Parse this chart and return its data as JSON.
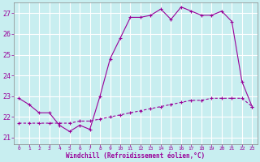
{
  "xlabel": "Windchill (Refroidissement éolien,°C)",
  "bg_color": "#c8eef0",
  "line_color": "#990099",
  "grid_color": "#ffffff",
  "spine_color": "#888888",
  "ylim": [
    20.7,
    27.5
  ],
  "xlim": [
    -0.5,
    23.5
  ],
  "yticks": [
    21,
    22,
    23,
    24,
    25,
    26,
    27
  ],
  "xticks": [
    0,
    1,
    2,
    3,
    4,
    5,
    6,
    7,
    8,
    9,
    10,
    11,
    12,
    13,
    14,
    15,
    16,
    17,
    18,
    19,
    20,
    21,
    22,
    23
  ],
  "series1_x": [
    0,
    1,
    2,
    3,
    4,
    5,
    6,
    7,
    8,
    9,
    10,
    11,
    12,
    13,
    14,
    15,
    16,
    17,
    18,
    19,
    20,
    21,
    22,
    23
  ],
  "series1_y": [
    22.9,
    22.6,
    22.2,
    22.2,
    21.6,
    21.3,
    21.6,
    21.4,
    23.0,
    24.8,
    25.8,
    26.8,
    26.8,
    26.9,
    27.2,
    26.7,
    27.3,
    27.1,
    26.9,
    26.9,
    27.1,
    26.6,
    23.7,
    22.5
  ],
  "series2_x": [
    0,
    1,
    2,
    3,
    4,
    5,
    6,
    7,
    8,
    9,
    10,
    11,
    12,
    13,
    14,
    15,
    16,
    17,
    18,
    19,
    20,
    21,
    22,
    23
  ],
  "series2_y": [
    21.7,
    21.7,
    21.7,
    21.7,
    21.7,
    21.7,
    21.8,
    21.8,
    21.9,
    22.0,
    22.1,
    22.2,
    22.3,
    22.4,
    22.5,
    22.6,
    22.7,
    22.8,
    22.8,
    22.9,
    22.9,
    22.9,
    22.9,
    22.5
  ]
}
